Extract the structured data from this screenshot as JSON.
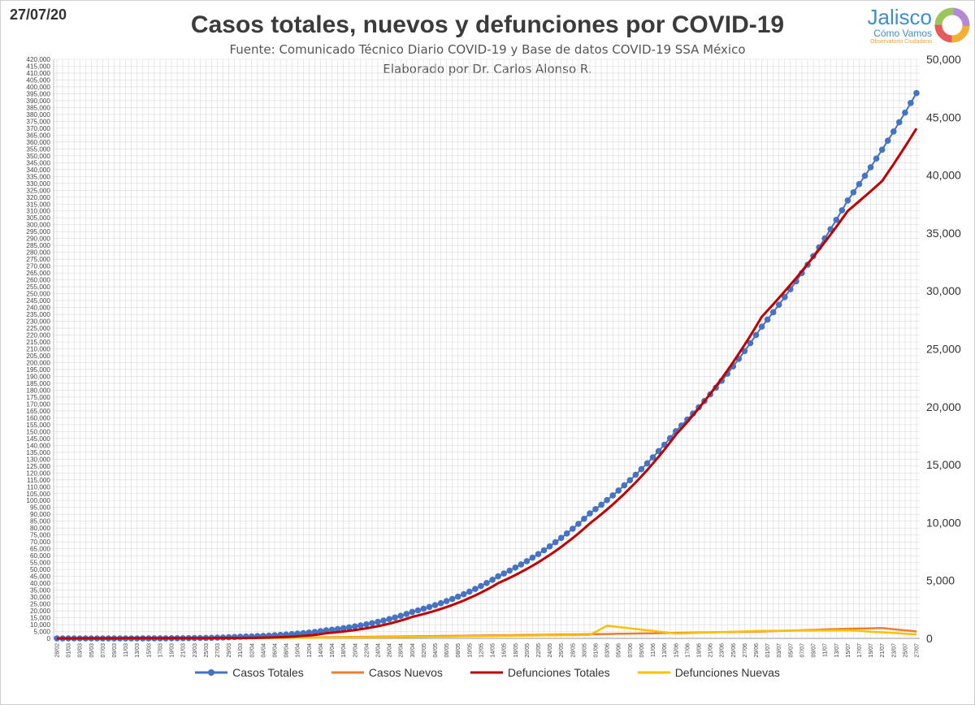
{
  "header": {
    "date": "27/07/20",
    "title": "Casos totales, nuevos y defunciones por COVID-19",
    "subtitle": "Fuente: Comunicado Técnico Diario COVID-19 y Base de datos COVID-19 SSA México",
    "author": "Elaborado por Dr. Carlos Alonso R."
  },
  "logo": {
    "name": "Jalisco",
    "tagline": "Cómo Vamos",
    "small": "Observatorio Ciudadano"
  },
  "colors": {
    "casos_totales": "#4472c4",
    "casos_nuevos": "#ed7d31",
    "defunciones_totales": "#c00000",
    "defunciones_nuevas": "#ffc000",
    "grid": "#d9d9d9"
  },
  "chart_data": {
    "type": "line",
    "grid": true,
    "legend_position": "bottom",
    "x_start": "2020-02-28",
    "x_end": "2020-07-27",
    "x_tick_labels": [
      "28/02",
      "01/03",
      "03/03",
      "05/03",
      "07/03",
      "09/03",
      "11/03",
      "13/03",
      "15/03",
      "17/03",
      "19/03",
      "21/03",
      "23/03",
      "25/03",
      "27/03",
      "29/03",
      "31/03",
      "02/04",
      "04/04",
      "06/04",
      "08/04",
      "10/04",
      "12/04",
      "14/04",
      "16/04",
      "18/04",
      "20/04",
      "22/04",
      "24/04",
      "26/04",
      "28/04",
      "30/04",
      "02/05",
      "04/05",
      "06/05",
      "08/05",
      "10/05",
      "12/05",
      "14/05",
      "16/05",
      "18/05",
      "20/05",
      "22/05",
      "24/05",
      "26/05",
      "28/05",
      "30/05",
      "01/06",
      "03/06",
      "05/06",
      "07/06",
      "09/06",
      "11/06",
      "13/06",
      "15/06",
      "17/06",
      "19/06",
      "21/06",
      "23/06",
      "25/06",
      "27/06",
      "29/06",
      "01/07",
      "03/07",
      "05/07",
      "07/07",
      "09/07",
      "11/07",
      "13/07",
      "15/07",
      "17/07",
      "19/07",
      "21/07",
      "23/07",
      "25/07",
      "27/07"
    ],
    "y_left": {
      "min": 0,
      "max": 420000,
      "major_step": 5000,
      "label_step": 5000
    },
    "y_right": {
      "min": 0,
      "max": 50000,
      "label_step": 5000,
      "tick_labels": [
        "0",
        "5,000",
        "10,000",
        "15,000",
        "20,000",
        "25,000",
        "30,000",
        "35,000",
        "40,000",
        "45,000",
        "50,000"
      ]
    },
    "series": [
      {
        "name": "Casos Totales",
        "axis": "left",
        "anchors": [
          [
            "2020-02-28",
            1
          ],
          [
            "2020-03-15",
            41
          ],
          [
            "2020-03-31",
            1215
          ],
          [
            "2020-04-15",
            5847
          ],
          [
            "2020-04-30",
            19224
          ],
          [
            "2020-05-15",
            45032
          ],
          [
            "2020-05-31",
            90664
          ],
          [
            "2020-06-15",
            150264
          ],
          [
            "2020-06-30",
            226089
          ],
          [
            "2020-07-15",
            317635
          ],
          [
            "2020-07-27",
            395489
          ]
        ]
      },
      {
        "name": "Casos Nuevos",
        "axis": "left",
        "anchors": [
          [
            "2020-02-28",
            1
          ],
          [
            "2020-03-31",
            160
          ],
          [
            "2020-04-30",
            1500
          ],
          [
            "2020-05-31",
            3000
          ],
          [
            "2020-06-30",
            5000
          ],
          [
            "2020-07-15",
            7000
          ],
          [
            "2020-07-21",
            7500
          ],
          [
            "2020-07-27",
            5000
          ]
        ]
      },
      {
        "name": "Defunciones Totales",
        "axis": "right",
        "anchors": [
          [
            "2020-02-28",
            0
          ],
          [
            "2020-03-31",
            29
          ],
          [
            "2020-04-15",
            449
          ],
          [
            "2020-04-30",
            1859
          ],
          [
            "2020-05-15",
            4767
          ],
          [
            "2020-05-31",
            9930
          ],
          [
            "2020-06-15",
            17580
          ],
          [
            "2020-06-30",
            27769
          ],
          [
            "2020-07-15",
            36906
          ],
          [
            "2020-07-21",
            39485
          ],
          [
            "2020-07-27",
            44022
          ]
        ]
      },
      {
        "name": "Defunciones Nuevas",
        "axis": "right",
        "anchors": [
          [
            "2020-02-28",
            0
          ],
          [
            "2020-03-31",
            9
          ],
          [
            "2020-04-30",
            130
          ],
          [
            "2020-05-31",
            300
          ],
          [
            "2020-06-03",
            1092
          ],
          [
            "2020-06-15",
            420
          ],
          [
            "2020-06-30",
            650
          ],
          [
            "2020-07-15",
            700
          ],
          [
            "2020-07-27",
            350
          ]
        ]
      }
    ]
  }
}
